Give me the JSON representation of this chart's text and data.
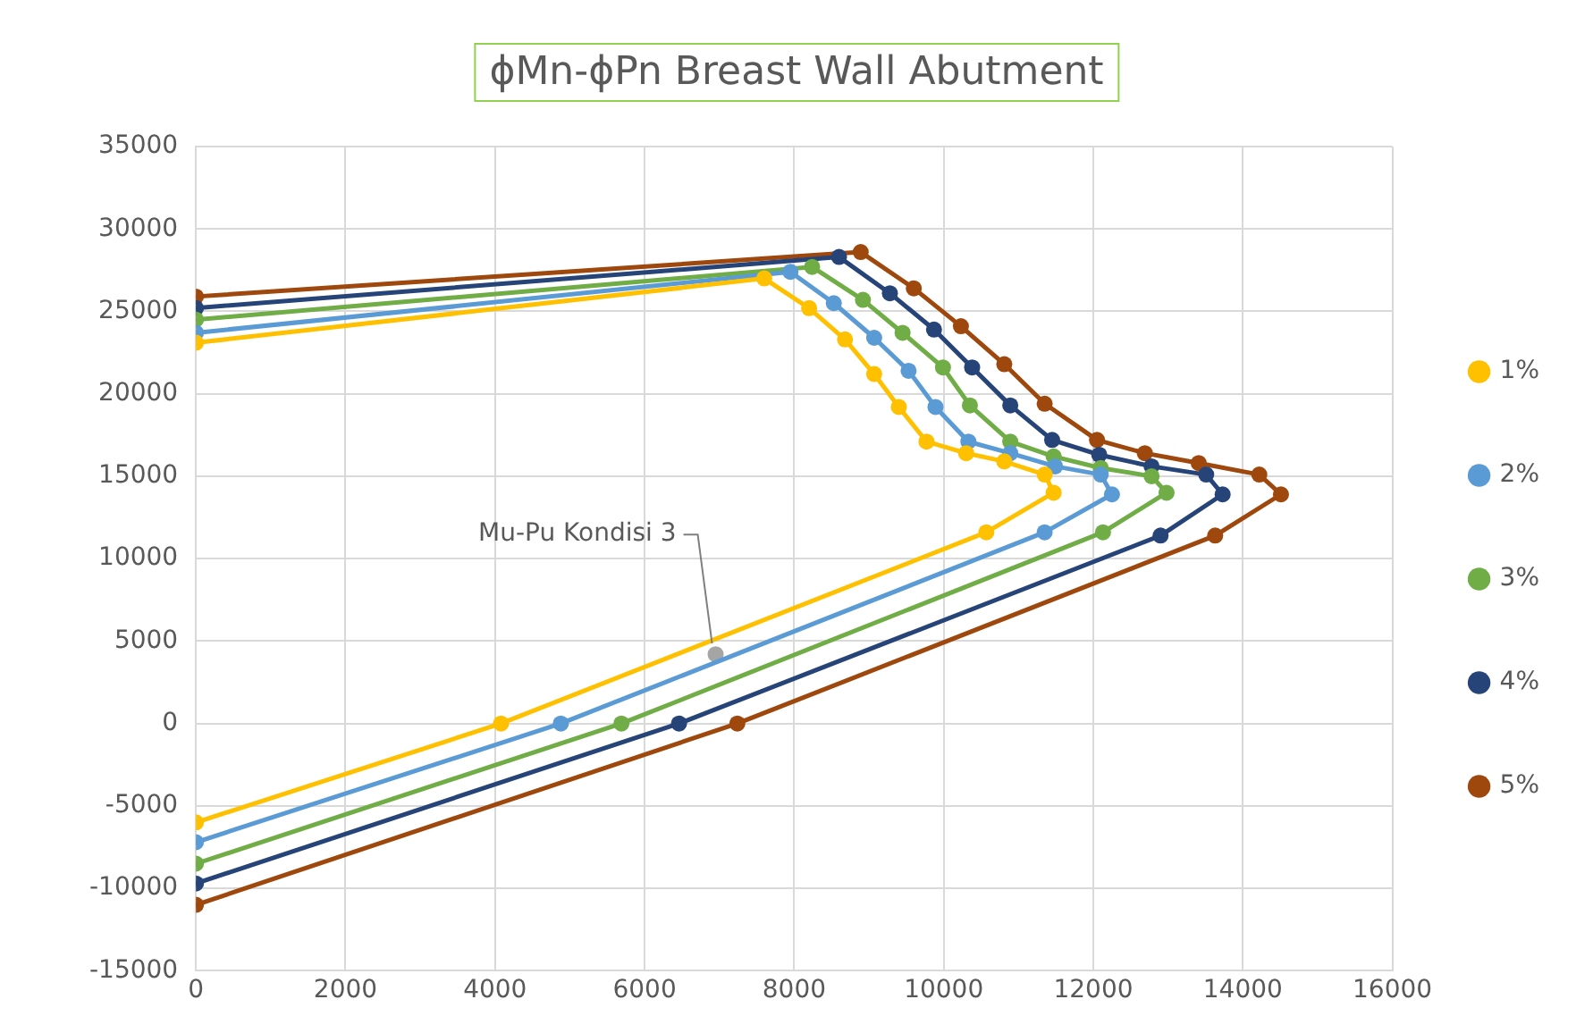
{
  "chart_data": {
    "type": "line",
    "title": "ϕMn-ϕPn Breast Wall Abutment",
    "xlim": [
      0,
      16000
    ],
    "xticks": [
      0,
      2000,
      4000,
      6000,
      8000,
      10000,
      12000,
      14000,
      16000
    ],
    "ylim": [
      -15000,
      35000
    ],
    "yticks": [
      -15000,
      -10000,
      -5000,
      0,
      5000,
      10000,
      15000,
      20000,
      25000,
      30000,
      35000
    ],
    "grid": true,
    "legend": "right",
    "marker": "circle",
    "line_style": "solid",
    "series": [
      {
        "name": "1%",
        "color": "#ffc000",
        "x": [
          0,
          7600,
          8200,
          8680,
          9070,
          9400,
          9770,
          10300,
          10810,
          11350,
          11470,
          10570,
          4080,
          0
        ],
        "values": [
          23100,
          27000,
          25200,
          23300,
          21200,
          19200,
          17100,
          16400,
          15900,
          15100,
          14000,
          11600,
          0,
          -6000
        ]
      },
      {
        "name": "2%",
        "color": "#5b9bd5",
        "x": [
          0,
          7950,
          8530,
          9070,
          9530,
          9890,
          10330,
          10890,
          11490,
          12100,
          12250,
          11350,
          4880,
          0
        ],
        "values": [
          23700,
          27400,
          25500,
          23400,
          21400,
          19200,
          17100,
          16400,
          15600,
          15100,
          13900,
          11600,
          0,
          -7200
        ]
      },
      {
        "name": "3%",
        "color": "#70ad47",
        "x": [
          0,
          8240,
          8920,
          9450,
          9990,
          10350,
          10890,
          11470,
          12100,
          12780,
          12980,
          12130,
          5690,
          0
        ],
        "values": [
          24500,
          27700,
          25700,
          23700,
          21600,
          19300,
          17100,
          16200,
          15500,
          15000,
          14000,
          11600,
          0,
          -8500
        ]
      },
      {
        "name": "4%",
        "color": "#264478",
        "x": [
          0,
          8600,
          9280,
          9870,
          10380,
          10890,
          11450,
          12080,
          12780,
          13510,
          13730,
          12900,
          6460,
          0
        ],
        "values": [
          25200,
          28300,
          26100,
          23900,
          21600,
          19300,
          17200,
          16300,
          15600,
          15100,
          13900,
          11400,
          0,
          -9700
        ]
      },
      {
        "name": "5%",
        "color": "#9e480e",
        "x": [
          0,
          8890,
          9600,
          10230,
          10810,
          11350,
          12050,
          12690,
          13410,
          14220,
          14510,
          13630,
          7240,
          0
        ],
        "values": [
          25900,
          28600,
          26400,
          24100,
          21800,
          19400,
          17200,
          16400,
          15800,
          15100,
          13900,
          11400,
          0,
          -11000
        ]
      },
      {
        "type": "scatter",
        "color": "#a5a5a5",
        "x": [
          6950
        ],
        "values": [
          4200
        ]
      }
    ],
    "annotations": [
      {
        "text": "Mu-Pu Kondisi 3",
        "x": 6950,
        "y": 4200
      }
    ]
  }
}
